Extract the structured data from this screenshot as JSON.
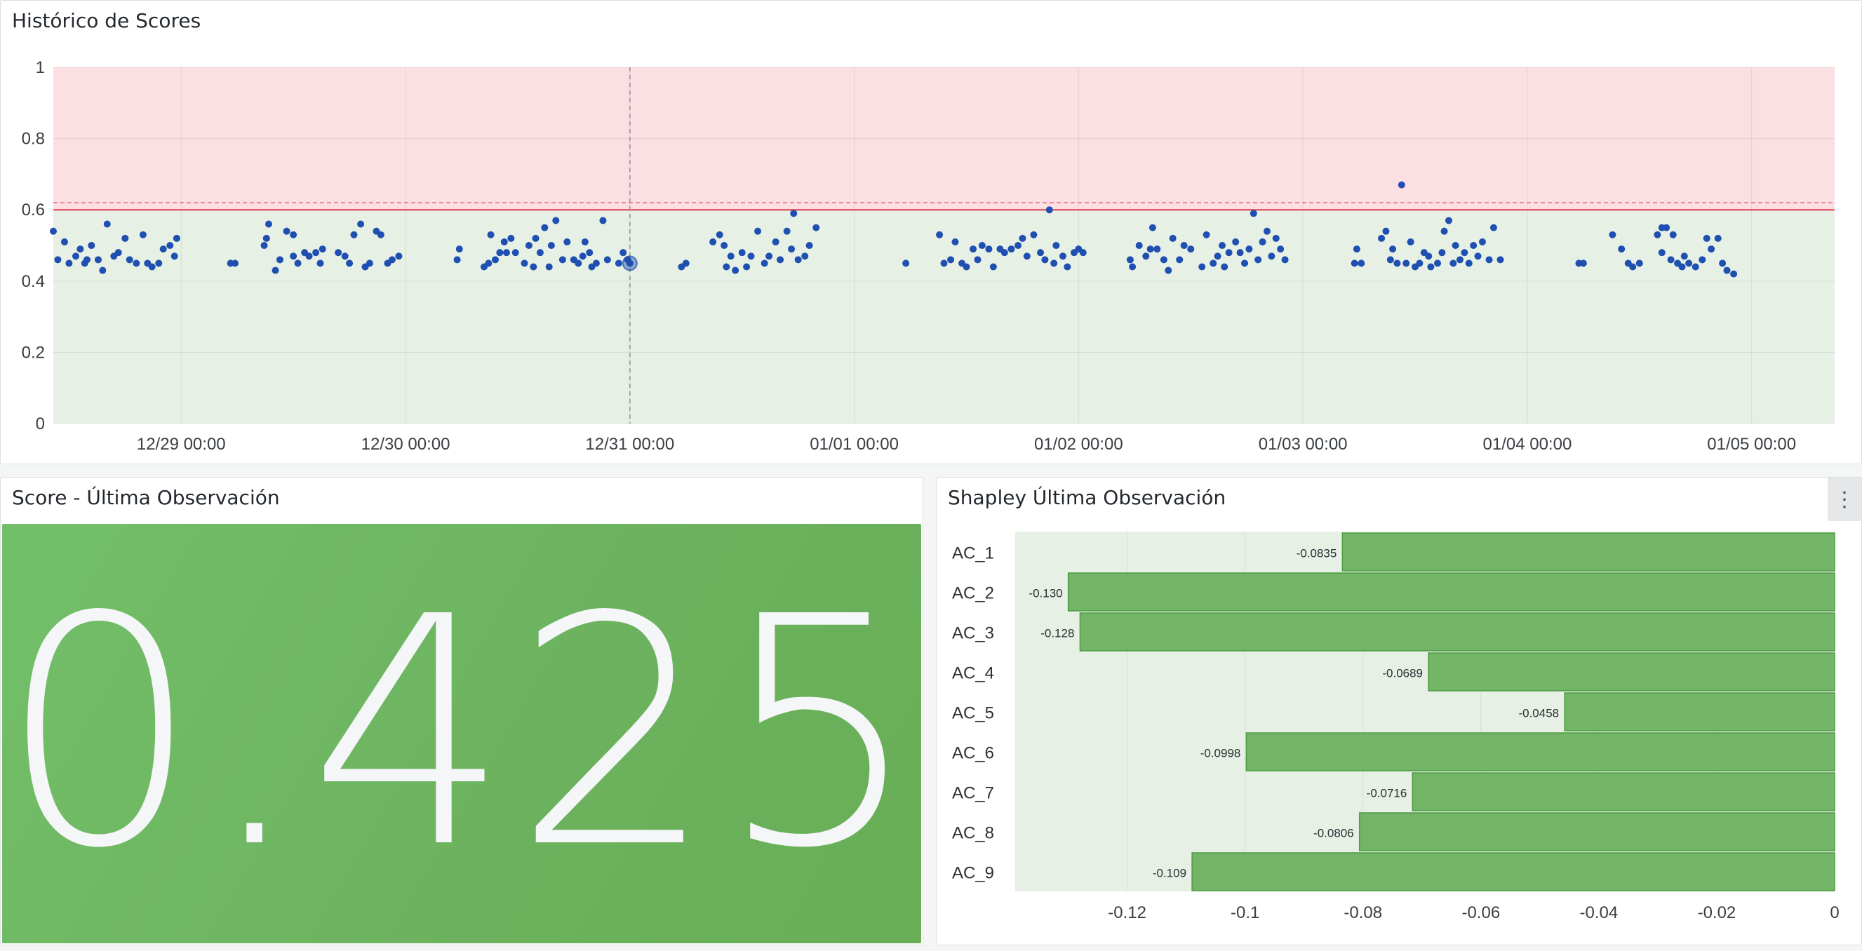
{
  "panels": {
    "history": {
      "title": "Histórico de Scores"
    },
    "score": {
      "title": "Score - Última Observación",
      "value": "0.425"
    },
    "shapley": {
      "title": "Shapley Última Observación"
    }
  },
  "icons": {
    "panel_menu": "more-vertical-icon"
  },
  "colors": {
    "danger_band": "#fbdfe3",
    "safe_band": "#e6f0e5",
    "threshold_line": "#e0404e",
    "points": "#1f4fb0",
    "bar_fill": "#73b567",
    "bar_stroke": "#4e9b43",
    "stat_bg": "#6cb35e"
  },
  "chart_data": [
    {
      "type": "scatter",
      "title": "Histórico de Scores",
      "ylim": [
        0,
        1
      ],
      "yticks": [
        "0",
        "0.2",
        "0.4",
        "0.6",
        "0.8",
        "1"
      ],
      "xticks": [
        "12/29 00:00",
        "12/30 00:00",
        "12/31 00:00",
        "01/01 00:00",
        "01/02 00:00",
        "01/03 00:00",
        "01/04 00:00",
        "01/05 00:00"
      ],
      "xlim_days": [
        -0.57,
        7.37
      ],
      "threshold": 0.6,
      "threshold_dashed": 0.62,
      "hover_day": 2.0,
      "grid": true,
      "series": [
        {
          "points": [
            [
              -0.57,
              0.54
            ],
            [
              -0.55,
              0.46
            ],
            [
              -0.52,
              0.51
            ],
            [
              -0.5,
              0.45
            ],
            [
              -0.47,
              0.47
            ],
            [
              -0.45,
              0.49
            ],
            [
              -0.43,
              0.45
            ],
            [
              -0.42,
              0.46
            ],
            [
              -0.4,
              0.5
            ],
            [
              -0.37,
              0.46
            ],
            [
              -0.35,
              0.43
            ],
            [
              -0.33,
              0.56
            ],
            [
              -0.3,
              0.47
            ],
            [
              -0.28,
              0.48
            ],
            [
              -0.25,
              0.52
            ],
            [
              -0.23,
              0.46
            ],
            [
              -0.2,
              0.45
            ],
            [
              -0.17,
              0.53
            ],
            [
              -0.15,
              0.45
            ],
            [
              -0.13,
              0.44
            ],
            [
              -0.1,
              0.45
            ],
            [
              -0.08,
              0.49
            ],
            [
              -0.05,
              0.5
            ],
            [
              -0.03,
              0.47
            ],
            [
              -0.02,
              0.52
            ],
            [
              0.22,
              0.45
            ],
            [
              0.24,
              0.45
            ],
            [
              0.37,
              0.5
            ],
            [
              0.38,
              0.52
            ],
            [
              0.39,
              0.56
            ],
            [
              0.42,
              0.43
            ],
            [
              0.44,
              0.46
            ],
            [
              0.47,
              0.54
            ],
            [
              0.5,
              0.47
            ],
            [
              0.5,
              0.53
            ],
            [
              0.52,
              0.45
            ],
            [
              0.55,
              0.48
            ],
            [
              0.57,
              0.47
            ],
            [
              0.6,
              0.48
            ],
            [
              0.62,
              0.45
            ],
            [
              0.63,
              0.49
            ],
            [
              0.7,
              0.48
            ],
            [
              0.73,
              0.47
            ],
            [
              0.75,
              0.45
            ],
            [
              0.77,
              0.53
            ],
            [
              0.8,
              0.56
            ],
            [
              0.82,
              0.44
            ],
            [
              0.84,
              0.45
            ],
            [
              0.87,
              0.54
            ],
            [
              0.89,
              0.53
            ],
            [
              0.92,
              0.45
            ],
            [
              0.94,
              0.46
            ],
            [
              0.97,
              0.47
            ],
            [
              1.23,
              0.46
            ],
            [
              1.24,
              0.49
            ],
            [
              1.35,
              0.44
            ],
            [
              1.37,
              0.45
            ],
            [
              1.38,
              0.53
            ],
            [
              1.4,
              0.46
            ],
            [
              1.42,
              0.48
            ],
            [
              1.44,
              0.51
            ],
            [
              1.45,
              0.48
            ],
            [
              1.47,
              0.52
            ],
            [
              1.49,
              0.48
            ],
            [
              1.53,
              0.45
            ],
            [
              1.55,
              0.5
            ],
            [
              1.57,
              0.44
            ],
            [
              1.58,
              0.52
            ],
            [
              1.6,
              0.48
            ],
            [
              1.62,
              0.55
            ],
            [
              1.64,
              0.44
            ],
            [
              1.65,
              0.5
            ],
            [
              1.67,
              0.57
            ],
            [
              1.7,
              0.46
            ],
            [
              1.72,
              0.51
            ],
            [
              1.75,
              0.46
            ],
            [
              1.77,
              0.45
            ],
            [
              1.79,
              0.47
            ],
            [
              1.8,
              0.51
            ],
            [
              1.82,
              0.48
            ],
            [
              1.83,
              0.44
            ],
            [
              1.85,
              0.45
            ],
            [
              1.88,
              0.57
            ],
            [
              1.9,
              0.46
            ],
            [
              1.95,
              0.45
            ],
            [
              1.97,
              0.48
            ],
            [
              1.99,
              0.46
            ],
            [
              2.0,
              0.45
            ],
            [
              2.23,
              0.44
            ],
            [
              2.25,
              0.45
            ],
            [
              2.37,
              0.51
            ],
            [
              2.4,
              0.53
            ],
            [
              2.42,
              0.5
            ],
            [
              2.43,
              0.44
            ],
            [
              2.45,
              0.47
            ],
            [
              2.47,
              0.43
            ],
            [
              2.5,
              0.48
            ],
            [
              2.52,
              0.44
            ],
            [
              2.54,
              0.47
            ],
            [
              2.57,
              0.54
            ],
            [
              2.6,
              0.45
            ],
            [
              2.62,
              0.47
            ],
            [
              2.65,
              0.51
            ],
            [
              2.67,
              0.46
            ],
            [
              2.7,
              0.54
            ],
            [
              2.72,
              0.49
            ],
            [
              2.73,
              0.59
            ],
            [
              2.75,
              0.46
            ],
            [
              2.78,
              0.47
            ],
            [
              2.8,
              0.5
            ],
            [
              2.83,
              0.55
            ],
            [
              3.23,
              0.45
            ],
            [
              3.38,
              0.53
            ],
            [
              3.4,
              0.45
            ],
            [
              3.43,
              0.46
            ],
            [
              3.45,
              0.51
            ],
            [
              3.48,
              0.45
            ],
            [
              3.5,
              0.44
            ],
            [
              3.53,
              0.49
            ],
            [
              3.55,
              0.46
            ],
            [
              3.57,
              0.5
            ],
            [
              3.6,
              0.49
            ],
            [
              3.62,
              0.44
            ],
            [
              3.65,
              0.49
            ],
            [
              3.67,
              0.48
            ],
            [
              3.7,
              0.49
            ],
            [
              3.73,
              0.5
            ],
            [
              3.75,
              0.52
            ],
            [
              3.77,
              0.47
            ],
            [
              3.8,
              0.53
            ],
            [
              3.83,
              0.48
            ],
            [
              3.85,
              0.46
            ],
            [
              3.87,
              0.6
            ],
            [
              3.89,
              0.45
            ],
            [
              3.9,
              0.5
            ],
            [
              3.93,
              0.47
            ],
            [
              3.95,
              0.44
            ],
            [
              3.98,
              0.48
            ],
            [
              4.0,
              0.49
            ],
            [
              4.02,
              0.48
            ],
            [
              4.23,
              0.46
            ],
            [
              4.24,
              0.44
            ],
            [
              4.27,
              0.5
            ],
            [
              4.3,
              0.47
            ],
            [
              4.32,
              0.49
            ],
            [
              4.33,
              0.55
            ],
            [
              4.35,
              0.49
            ],
            [
              4.38,
              0.46
            ],
            [
              4.4,
              0.43
            ],
            [
              4.42,
              0.52
            ],
            [
              4.45,
              0.46
            ],
            [
              4.47,
              0.5
            ],
            [
              4.5,
              0.49
            ],
            [
              4.55,
              0.44
            ],
            [
              4.57,
              0.53
            ],
            [
              4.6,
              0.45
            ],
            [
              4.62,
              0.47
            ],
            [
              4.64,
              0.5
            ],
            [
              4.65,
              0.44
            ],
            [
              4.67,
              0.48
            ],
            [
              4.7,
              0.51
            ],
            [
              4.72,
              0.48
            ],
            [
              4.74,
              0.45
            ],
            [
              4.76,
              0.49
            ],
            [
              4.78,
              0.59
            ],
            [
              4.8,
              0.46
            ],
            [
              4.82,
              0.51
            ],
            [
              4.84,
              0.54
            ],
            [
              4.86,
              0.47
            ],
            [
              4.88,
              0.52
            ],
            [
              4.9,
              0.49
            ],
            [
              4.92,
              0.46
            ],
            [
              5.23,
              0.45
            ],
            [
              5.24,
              0.49
            ],
            [
              5.26,
              0.45
            ],
            [
              5.35,
              0.52
            ],
            [
              5.37,
              0.54
            ],
            [
              5.39,
              0.46
            ],
            [
              5.4,
              0.49
            ],
            [
              5.42,
              0.45
            ],
            [
              5.44,
              0.67
            ],
            [
              5.46,
              0.45
            ],
            [
              5.48,
              0.51
            ],
            [
              5.5,
              0.44
            ],
            [
              5.52,
              0.45
            ],
            [
              5.54,
              0.48
            ],
            [
              5.56,
              0.47
            ],
            [
              5.57,
              0.44
            ],
            [
              5.6,
              0.45
            ],
            [
              5.62,
              0.48
            ],
            [
              5.63,
              0.54
            ],
            [
              5.65,
              0.57
            ],
            [
              5.67,
              0.45
            ],
            [
              5.68,
              0.5
            ],
            [
              5.7,
              0.46
            ],
            [
              5.72,
              0.48
            ],
            [
              5.74,
              0.45
            ],
            [
              5.76,
              0.5
            ],
            [
              5.78,
              0.47
            ],
            [
              5.8,
              0.51
            ],
            [
              5.83,
              0.46
            ],
            [
              5.85,
              0.55
            ],
            [
              5.88,
              0.46
            ],
            [
              6.23,
              0.45
            ],
            [
              6.25,
              0.45
            ],
            [
              6.38,
              0.53
            ],
            [
              6.42,
              0.49
            ],
            [
              6.45,
              0.45
            ],
            [
              6.47,
              0.44
            ],
            [
              6.5,
              0.45
            ],
            [
              6.58,
              0.53
            ],
            [
              6.6,
              0.55
            ],
            [
              6.62,
              0.55
            ],
            [
              6.6,
              0.48
            ],
            [
              6.64,
              0.46
            ],
            [
              6.65,
              0.53
            ],
            [
              6.67,
              0.45
            ],
            [
              6.69,
              0.44
            ],
            [
              6.7,
              0.47
            ],
            [
              6.72,
              0.45
            ],
            [
              6.75,
              0.44
            ],
            [
              6.78,
              0.46
            ],
            [
              6.8,
              0.52
            ],
            [
              6.82,
              0.49
            ],
            [
              6.85,
              0.52
            ],
            [
              6.87,
              0.45
            ],
            [
              6.89,
              0.43
            ],
            [
              6.92,
              0.42
            ]
          ]
        }
      ]
    },
    {
      "type": "bar",
      "title": "Shapley Última Observación",
      "orientation": "horizontal",
      "categories": [
        "AC_1",
        "AC_2",
        "AC_3",
        "AC_4",
        "AC_5",
        "AC_6",
        "AC_7",
        "AC_8",
        "AC_9"
      ],
      "values": [
        -0.0835,
        -0.13,
        -0.128,
        -0.0689,
        -0.0458,
        -0.0998,
        -0.0716,
        -0.0806,
        -0.109
      ],
      "value_labels": [
        "-0.0835",
        "-0.130",
        "-0.128",
        "-0.0689",
        "-0.0458",
        "-0.0998",
        "-0.0716",
        "-0.0806",
        "-0.109"
      ],
      "xlim": [
        -0.139,
        0
      ],
      "xticks": [
        "-0.12",
        "-0.1",
        "-0.08",
        "-0.06",
        "-0.04",
        "-0.02",
        "0"
      ],
      "grid": true
    }
  ]
}
